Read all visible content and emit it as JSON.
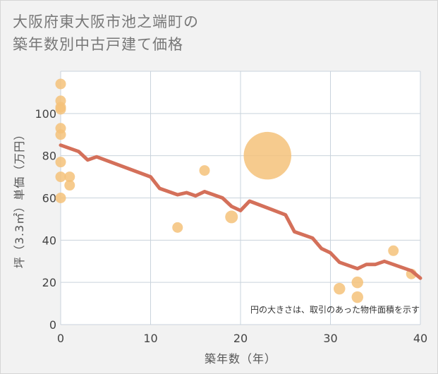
{
  "title_line1": "大阪府東大阪市池之端町の",
  "title_line2": "築年数別中古戸建て価格",
  "note": "円の大きさは、取引のあった物件面積を示す",
  "chart_data": {
    "type": "scatter",
    "title": "大阪府東大阪市池之端町の築年数別中古戸建て価格",
    "xlabel": "築年数（年）",
    "ylabel": "坪（3.3㎡）単価（万円）",
    "xlim": [
      0,
      40
    ],
    "ylim": [
      0,
      120
    ],
    "xticks": [
      0,
      10,
      20,
      30,
      40
    ],
    "yticks": [
      0,
      20,
      40,
      60,
      80,
      100
    ],
    "grid": true,
    "colors": {
      "points": "#f5c27a",
      "trend": "#d4705a"
    },
    "points": [
      {
        "x": 0,
        "y": 114,
        "size": 1
      },
      {
        "x": 0,
        "y": 106,
        "size": 1
      },
      {
        "x": 0,
        "y": 103,
        "size": 1
      },
      {
        "x": 0,
        "y": 102,
        "size": 1
      },
      {
        "x": 0,
        "y": 93,
        "size": 1
      },
      {
        "x": 0,
        "y": 90,
        "size": 1
      },
      {
        "x": 0,
        "y": 77,
        "size": 1
      },
      {
        "x": 0,
        "y": 70,
        "size": 1
      },
      {
        "x": 0,
        "y": 60,
        "size": 1
      },
      {
        "x": 1,
        "y": 70,
        "size": 1
      },
      {
        "x": 1,
        "y": 66,
        "size": 1
      },
      {
        "x": 13,
        "y": 46,
        "size": 1
      },
      {
        "x": 16,
        "y": 73,
        "size": 1
      },
      {
        "x": 19,
        "y": 51,
        "size": 1.2
      },
      {
        "x": 23,
        "y": 80,
        "size": 4.5
      },
      {
        "x": 31,
        "y": 17,
        "size": 1.1
      },
      {
        "x": 33,
        "y": 20,
        "size": 1.1
      },
      {
        "x": 33,
        "y": 13,
        "size": 1.1
      },
      {
        "x": 37,
        "y": 35,
        "size": 1
      },
      {
        "x": 39,
        "y": 24,
        "size": 1
      }
    ],
    "trend": {
      "x": [
        0,
        2,
        3,
        4,
        10,
        11,
        13,
        14,
        15,
        16,
        18,
        19,
        20,
        21,
        25,
        26,
        28,
        29,
        30,
        31,
        33,
        34,
        35,
        36,
        39,
        40
      ],
      "y": [
        85,
        82,
        78,
        79.5,
        70,
        64.5,
        61.5,
        62.5,
        61,
        63,
        60,
        56,
        54,
        58.5,
        52,
        44,
        41,
        36,
        34,
        29.5,
        26.5,
        28.5,
        28.5,
        30,
        25.5,
        22
      ]
    }
  }
}
